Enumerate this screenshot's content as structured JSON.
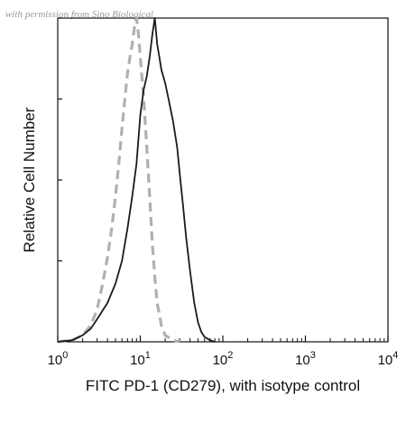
{
  "watermark": "with permission from Sino Biological",
  "chart_data": {
    "type": "line",
    "xlabel": "FITC PD-1 (CD279), with isotype control",
    "ylabel": "Relative Cell Number",
    "x_scale": "log",
    "xlim": [
      1,
      10000
    ],
    "ylim": [
      0,
      100
    ],
    "x_ticks": [
      1,
      10,
      100,
      1000,
      10000
    ],
    "x_tick_labels": [
      {
        "base": "10",
        "exp": "0"
      },
      {
        "base": "10",
        "exp": "1"
      },
      {
        "base": "10",
        "exp": "2"
      },
      {
        "base": "10",
        "exp": "3"
      },
      {
        "base": "10",
        "exp": "4"
      }
    ],
    "y_ticks": [
      0,
      25,
      50,
      75,
      100
    ],
    "grid": false,
    "series": [
      {
        "style": "dashed",
        "color": "#b0b0b0",
        "points": [
          [
            1,
            0
          ],
          [
            1.5,
            0.5
          ],
          [
            2,
            2
          ],
          [
            2.5,
            5
          ],
          [
            3,
            10
          ],
          [
            3.5,
            18
          ],
          [
            4,
            26
          ],
          [
            4.5,
            35
          ],
          [
            5,
            45
          ],
          [
            5.5,
            55
          ],
          [
            6,
            66
          ],
          [
            6.5,
            75
          ],
          [
            7,
            83
          ],
          [
            7.5,
            88
          ],
          [
            8,
            92
          ],
          [
            8.5,
            97
          ],
          [
            9,
            100
          ],
          [
            9.5,
            95
          ],
          [
            10,
            88
          ],
          [
            11,
            75
          ],
          [
            12,
            60
          ],
          [
            13,
            45
          ],
          [
            14,
            30
          ],
          [
            15,
            20
          ],
          [
            16,
            12
          ],
          [
            18,
            5
          ],
          [
            20,
            2
          ],
          [
            25,
            0.5
          ],
          [
            30,
            0
          ]
        ]
      },
      {
        "style": "solid",
        "color": "#1a1a1a",
        "points": [
          [
            1,
            0
          ],
          [
            1.5,
            0.5
          ],
          [
            2,
            2
          ],
          [
            2.5,
            4
          ],
          [
            3,
            7
          ],
          [
            4,
            12
          ],
          [
            5,
            18
          ],
          [
            6,
            25
          ],
          [
            7,
            35
          ],
          [
            8,
            45
          ],
          [
            9,
            55
          ],
          [
            10,
            70
          ],
          [
            11,
            78
          ],
          [
            12,
            82
          ],
          [
            13,
            88
          ],
          [
            14,
            95
          ],
          [
            15,
            100
          ],
          [
            16,
            92
          ],
          [
            17,
            88
          ],
          [
            18,
            84
          ],
          [
            20,
            80
          ],
          [
            22,
            75
          ],
          [
            25,
            68
          ],
          [
            28,
            60
          ],
          [
            30,
            52
          ],
          [
            33,
            42
          ],
          [
            36,
            32
          ],
          [
            40,
            22
          ],
          [
            45,
            12
          ],
          [
            50,
            6
          ],
          [
            55,
            3
          ],
          [
            60,
            1.5
          ],
          [
            70,
            0.5
          ],
          [
            80,
            0
          ]
        ]
      }
    ]
  }
}
